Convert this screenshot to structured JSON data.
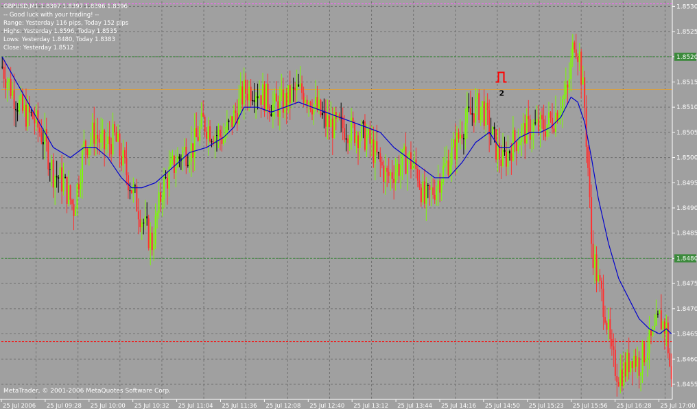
{
  "header": {
    "symbol_line": "GBPUSD,M1  1.8397 1.8397 1.8396 1.8396",
    "lines": [
      "-- Good luck with your trading! --",
      "Range: Yesterday 116 pips, Today 152 pips",
      "Highs: Yesterday 1.8596, Today 1.8535",
      "Lows:  Yesterday 1.8480, Today 1.8383",
      "Close: Yesterday 1.8512"
    ]
  },
  "footer": {
    "copyright": "MetaTrader, © 2001-2006 MetaQuotes Software Corp."
  },
  "signal": {
    "label": "2",
    "price": 1.8512
  },
  "colors": {
    "background": "#a0a0a0",
    "bull": "#7cfc00",
    "bear": "#ff3030",
    "doji": "#000000",
    "ma": "#0000cc",
    "grid": "#707070",
    "level_green": "#3c8a3c",
    "level_orange": "#d8a040",
    "level_red": "#ff0000",
    "level_pink": "#ff60ff",
    "arrow": "#ff0000"
  },
  "chart_data": {
    "type": "candlestick",
    "ylim": [
      1.8452,
      1.8531
    ],
    "y_ticks": [
      "1.8530",
      "1.8525",
      "1.8520",
      "1.8515",
      "1.8510",
      "1.8505",
      "1.8500",
      "1.8495",
      "1.8490",
      "1.8485",
      "1.8480",
      "1.8475",
      "1.8470",
      "1.8465",
      "1.8460",
      "1.8455"
    ],
    "x_ticks": [
      "25 Jul 2006",
      "25 Jul 09:28",
      "25 Jul 10:00",
      "25 Jul 10:32",
      "25 Jul 11:04",
      "25 Jul 11:36",
      "25 Jul 12:08",
      "25 Jul 12:40",
      "25 Jul 13:12",
      "25 Jul 13:44",
      "25 Jul 14:16",
      "25 Jul 14:50",
      "25 Jul 15:23",
      "25 Jul 15:56",
      "25 Jul 16:28",
      "25 Jul 17:00"
    ],
    "levels": [
      {
        "price": 1.852,
        "style": "green",
        "label": "1.8520"
      },
      {
        "price": 1.848,
        "style": "green",
        "label": "1.8480"
      },
      {
        "price": 1.85135,
        "style": "orange"
      },
      {
        "price": 1.84635,
        "style": "red"
      },
      {
        "price": 1.85305,
        "style": "pink"
      }
    ],
    "close_path": [
      [
        0,
        1.8518
      ],
      [
        6,
        1.8513
      ],
      [
        12,
        1.8509
      ],
      [
        18,
        1.8508
      ],
      [
        24,
        1.8504
      ],
      [
        30,
        1.8497
      ],
      [
        36,
        1.8495
      ],
      [
        42,
        1.849
      ],
      [
        48,
        1.8502
      ],
      [
        54,
        1.8505
      ],
      [
        60,
        1.8502
      ],
      [
        66,
        1.8504
      ],
      [
        72,
        1.8498
      ],
      [
        78,
        1.8492
      ],
      [
        84,
        1.8486
      ],
      [
        88,
        1.8483
      ],
      [
        94,
        1.8494
      ],
      [
        100,
        1.8498
      ],
      [
        106,
        1.8501
      ],
      [
        112,
        1.8502
      ],
      [
        118,
        1.8507
      ],
      [
        124,
        1.8505
      ],
      [
        130,
        1.8504
      ],
      [
        136,
        1.8508
      ],
      [
        142,
        1.8513
      ],
      [
        148,
        1.8514
      ],
      [
        154,
        1.8512
      ],
      [
        160,
        1.851
      ],
      [
        166,
        1.8511
      ],
      [
        172,
        1.8513
      ],
      [
        178,
        1.8513
      ],
      [
        184,
        1.851
      ],
      [
        190,
        1.8507
      ],
      [
        196,
        1.8506
      ],
      [
        202,
        1.8506
      ],
      [
        208,
        1.8505
      ],
      [
        214,
        1.8504
      ],
      [
        220,
        1.85
      ],
      [
        226,
        1.8496
      ],
      [
        232,
        1.8498
      ],
      [
        238,
        1.85
      ],
      [
        244,
        1.8497
      ],
      [
        248,
        1.8491
      ],
      [
        254,
        1.8494
      ],
      [
        260,
        1.8498
      ],
      [
        266,
        1.8502
      ],
      [
        270,
        1.8506
      ],
      [
        274,
        1.8508
      ],
      [
        278,
        1.851
      ],
      [
        282,
        1.851
      ],
      [
        286,
        1.8506
      ],
      [
        290,
        1.8502
      ],
      [
        294,
        1.8499
      ],
      [
        300,
        1.8503
      ],
      [
        306,
        1.8505
      ],
      [
        312,
        1.8506
      ],
      [
        318,
        1.8506
      ],
      [
        324,
        1.8508
      ],
      [
        328,
        1.8511
      ],
      [
        332,
        1.8513
      ],
      [
        336,
        1.8524
      ],
      [
        339,
        1.852
      ],
      [
        342,
        1.851
      ],
      [
        344,
        1.8498
      ],
      [
        346,
        1.8483
      ],
      [
        350,
        1.8475
      ],
      [
        354,
        1.847
      ],
      [
        358,
        1.846
      ],
      [
        362,
        1.8457
      ],
      [
        366,
        1.8458
      ],
      [
        370,
        1.8461
      ],
      [
        374,
        1.8459
      ],
      [
        378,
        1.8462
      ],
      [
        382,
        1.8464
      ],
      [
        386,
        1.8468
      ],
      [
        390,
        1.8466
      ],
      [
        393,
        1.8455
      ]
    ],
    "moving_average": [
      [
        0,
        1.852
      ],
      [
        10,
        1.8514
      ],
      [
        20,
        1.8508
      ],
      [
        30,
        1.8502
      ],
      [
        40,
        1.85
      ],
      [
        48,
        1.8502
      ],
      [
        55,
        1.8502
      ],
      [
        62,
        1.85
      ],
      [
        70,
        1.8496
      ],
      [
        76,
        1.8494
      ],
      [
        82,
        1.8494
      ],
      [
        90,
        1.8495
      ],
      [
        100,
        1.8498
      ],
      [
        110,
        1.8501
      ],
      [
        120,
        1.8502
      ],
      [
        130,
        1.8504
      ],
      [
        136,
        1.8506
      ],
      [
        142,
        1.851
      ],
      [
        150,
        1.851
      ],
      [
        158,
        1.8509
      ],
      [
        166,
        1.851
      ],
      [
        174,
        1.8511
      ],
      [
        182,
        1.851
      ],
      [
        190,
        1.8509
      ],
      [
        198,
        1.8508
      ],
      [
        206,
        1.8507
      ],
      [
        214,
        1.8506
      ],
      [
        222,
        1.8505
      ],
      [
        230,
        1.8502
      ],
      [
        238,
        1.85
      ],
      [
        246,
        1.8498
      ],
      [
        254,
        1.8496
      ],
      [
        262,
        1.8496
      ],
      [
        270,
        1.8499
      ],
      [
        278,
        1.8503
      ],
      [
        286,
        1.8505
      ],
      [
        292,
        1.8502
      ],
      [
        298,
        1.8502
      ],
      [
        304,
        1.8504
      ],
      [
        310,
        1.8505
      ],
      [
        316,
        1.8505
      ],
      [
        322,
        1.8506
      ],
      [
        328,
        1.8508
      ],
      [
        334,
        1.8512
      ],
      [
        338,
        1.8511
      ],
      [
        342,
        1.8507
      ],
      [
        346,
        1.85
      ],
      [
        350,
        1.8492
      ],
      [
        356,
        1.8483
      ],
      [
        362,
        1.8476
      ],
      [
        368,
        1.8472
      ],
      [
        374,
        1.8468
      ],
      [
        380,
        1.8466
      ],
      [
        386,
        1.8465
      ],
      [
        390,
        1.8466
      ],
      [
        393,
        1.8465
      ]
    ]
  }
}
